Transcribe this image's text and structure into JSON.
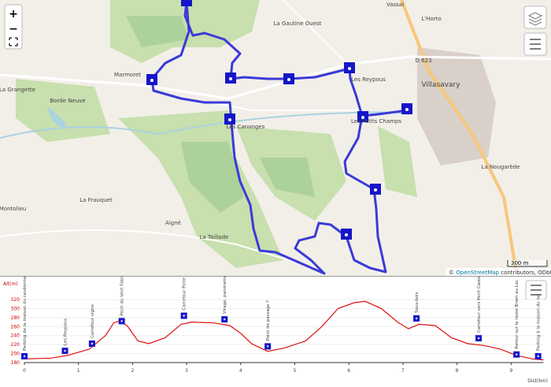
{
  "map": {
    "controls": {
      "zoom_in": "+",
      "zoom_out": "−"
    },
    "labels": [
      "Vassal",
      "L'Horto",
      "La Gautine Ouest",
      "D 623",
      "Villasavary",
      "Les Reypous",
      "Marmoret",
      "La Grangette",
      "Borde Neuve",
      "Les Canonges",
      "Les Petits Champs",
      "La Nougarède",
      "La Frauquet",
      "Aigné",
      "La Taillade",
      "Montolieu"
    ],
    "scale": "300 m",
    "attribution": {
      "prefix": "©",
      "link": "OpenStreetMap",
      "rest": "contributors, ODbL 1.0"
    }
  },
  "profile": {
    "y_label": "Alt(m)",
    "x_label": "Dist(km)",
    "ylim": [
      180,
      320
    ],
    "yticks": [
      180,
      200,
      220,
      240,
      260,
      280,
      300,
      320
    ],
    "xlim": [
      0,
      9.6
    ],
    "xticks": [
      0,
      1,
      2,
      3,
      4,
      5,
      6,
      7,
      8,
      9
    ],
    "distance": [
      0,
      0.5,
      0.8,
      1.2,
      1.5,
      1.65,
      1.75,
      1.9,
      2.1,
      2.3,
      2.6,
      2.9,
      3.1,
      3.5,
      3.8,
      4.0,
      4.2,
      4.5,
      4.8,
      5.2,
      5.5,
      5.8,
      6.1,
      6.3,
      6.6,
      6.9,
      7.1,
      7.3,
      7.6,
      7.9,
      8.2,
      8.5,
      8.8,
      9.1,
      9.4,
      9.6
    ],
    "elevation": [
      188,
      190,
      196,
      210,
      240,
      268,
      272,
      262,
      228,
      222,
      235,
      265,
      270,
      268,
      262,
      245,
      222,
      205,
      212,
      228,
      260,
      300,
      313,
      316,
      300,
      270,
      255,
      265,
      262,
      235,
      222,
      218,
      210,
      196,
      188,
      186
    ],
    "markers": [
      {
        "label": "Parking de la maison du randonneur",
        "distance": 0,
        "elevation": 194
      },
      {
        "label": "Les Reypous",
        "distance": 0.75,
        "elevation": 206
      },
      {
        "label": "Carrefour vigne",
        "distance": 1.25,
        "elevation": 222
      },
      {
        "label": "Pech du Vent Fabre",
        "distance": 1.8,
        "elevation": 272
      },
      {
        "label": "Carrefour Pinte",
        "distance": 2.95,
        "elevation": 284
      },
      {
        "label": "Virage, panorama",
        "distance": 3.7,
        "elevation": 276
      },
      {
        "label": "Point de passage ?",
        "distance": 4.5,
        "elevation": 216
      },
      {
        "label": "Sous-bois",
        "distance": 7.25,
        "elevation": 278
      },
      {
        "label": "Carrefour vers Pech Castel",
        "distance": 8.4,
        "elevation": 234
      },
      {
        "label": "Retour sur la route Bram au Lac",
        "distance": 9.1,
        "elevation": 198
      },
      {
        "label": "Parking à la maison du lac",
        "distance": 9.5,
        "elevation": 194
      }
    ]
  }
}
